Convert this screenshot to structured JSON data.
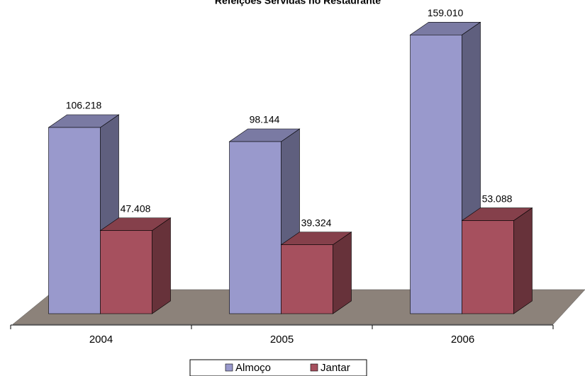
{
  "chart_data": {
    "type": "bar3d",
    "title": "Refeições Servidas no Restaurante",
    "categories": [
      "2004",
      "2005",
      "2006"
    ],
    "series": [
      {
        "name": "Almoço",
        "color": "#9999cc",
        "values": [
          106218,
          98144,
          159010
        ],
        "value_labels": [
          "106.218",
          "98.144",
          "159.010"
        ]
      },
      {
        "name": "Jantar",
        "color": "#a6505e",
        "values": [
          47408,
          39324,
          53088
        ],
        "value_labels": [
          "47.408",
          "39.324",
          "53.088"
        ]
      }
    ],
    "legend": "bottom"
  }
}
